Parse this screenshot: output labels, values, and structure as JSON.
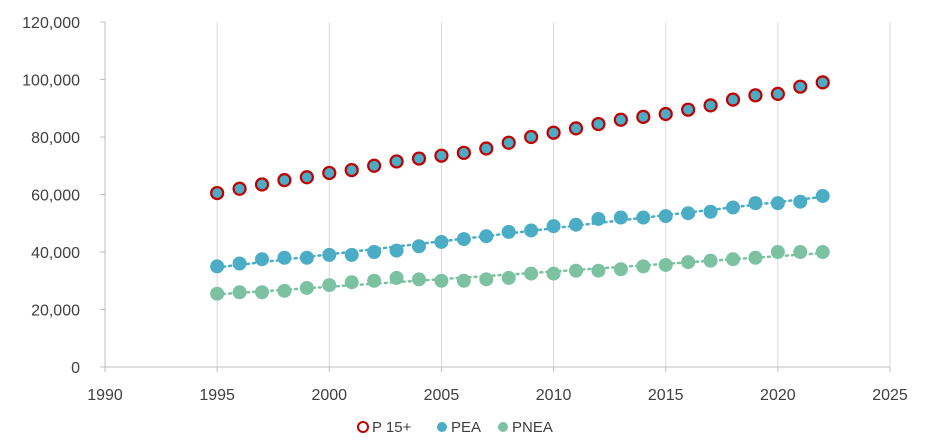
{
  "chart_data": {
    "type": "scatter",
    "title": "",
    "xlabel": "",
    "ylabel": "",
    "xlim": [
      1990,
      2025
    ],
    "ylim": [
      0,
      120000
    ],
    "x_ticks": [
      1990,
      1995,
      2000,
      2005,
      2010,
      2015,
      2020,
      2025
    ],
    "y_ticks": [
      0,
      20000,
      40000,
      60000,
      80000,
      100000,
      120000
    ],
    "x_tick_labels": [
      "1990",
      "1995",
      "2000",
      "2005",
      "2010",
      "2015",
      "2020",
      "2025"
    ],
    "y_tick_labels": [
      "0",
      "20,000",
      "40,000",
      "60,000",
      "80,000",
      "100,000",
      "120,000"
    ],
    "grid": "vertical",
    "legend_position": "bottom",
    "x": [
      1995,
      1996,
      1997,
      1998,
      1999,
      2000,
      2001,
      2002,
      2003,
      2004,
      2005,
      2006,
      2007,
      2008,
      2009,
      2010,
      2011,
      2012,
      2013,
      2014,
      2015,
      2016,
      2017,
      2018,
      2019,
      2020,
      2021,
      2022
    ],
    "series": [
      {
        "name": "P 15+",
        "fill": "#4bacc6",
        "stroke": "#c00000",
        "trendline": false,
        "values": [
          60500,
          62000,
          63500,
          65000,
          66000,
          67500,
          68500,
          70000,
          71500,
          72500,
          73500,
          74500,
          76000,
          78000,
          80000,
          81500,
          83000,
          84500,
          86000,
          87000,
          88000,
          89500,
          91000,
          93000,
          94500,
          95000,
          97500,
          99000
        ]
      },
      {
        "name": "PEA",
        "fill": "#4bacc6",
        "stroke": "#4bacc6",
        "trendline": true,
        "values": [
          35000,
          36000,
          37500,
          38000,
          38000,
          39000,
          39000,
          40000,
          40500,
          42000,
          43500,
          44500,
          45500,
          47000,
          47500,
          49000,
          49500,
          51500,
          52000,
          52000,
          52500,
          53500,
          54000,
          55500,
          57000,
          57000,
          57500,
          59500
        ]
      },
      {
        "name": "PNEA",
        "fill": "#7cc2a2",
        "stroke": "#7cc2a2",
        "trendline": true,
        "values": [
          25500,
          26000,
          26000,
          26500,
          27500,
          28500,
          29500,
          30000,
          31000,
          30500,
          30000,
          30000,
          30500,
          31000,
          32500,
          32500,
          33500,
          33500,
          34000,
          35000,
          35500,
          36500,
          37000,
          37500,
          38000,
          40000,
          40000,
          40000
        ]
      }
    ]
  },
  "colors": {
    "axis": "#bfbfbf",
    "grid": "#d9d9d9",
    "tick_text": "#404040"
  }
}
